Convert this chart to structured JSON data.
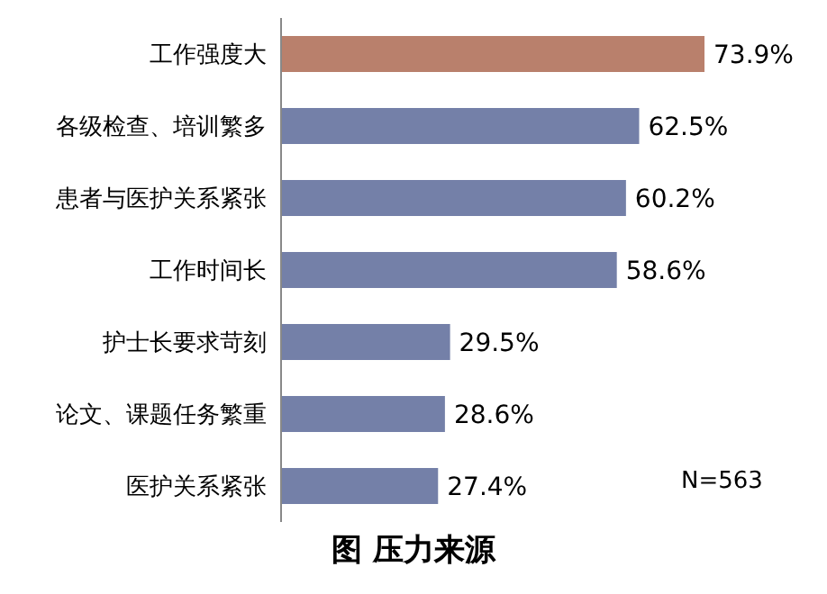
{
  "chart_data": {
    "type": "bar",
    "orientation": "horizontal",
    "title": "图 压力来源",
    "categories": [
      "工作强度大",
      "各级检查、培训繁多",
      "患者与医护关系紧张",
      "工作时间长",
      "护士长要求苛刻",
      "论文、课题任务繁重",
      "医护关系紧张"
    ],
    "values": [
      73.9,
      62.5,
      60.2,
      58.6,
      29.5,
      28.6,
      27.4
    ],
    "value_labels": [
      "73.9%",
      "62.5%",
      "60.2%",
      "58.6%",
      "29.5%",
      "28.6%",
      "27.4%"
    ],
    "colors": [
      "#b9806c",
      "#7480a8",
      "#7480a8",
      "#7480a8",
      "#7480a8",
      "#7480a8",
      "#7480a8"
    ],
    "annotations": [
      "N=563"
    ]
  }
}
